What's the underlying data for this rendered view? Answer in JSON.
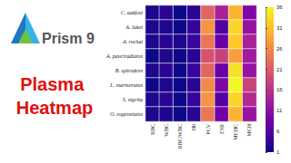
{
  "chart_data": {
    "type": "heatmap",
    "annotations": [
      "Prism 9",
      "Plasma Heatmap"
    ],
    "columns": [
      "RBC",
      "WBC",
      "RBC/WBC",
      "Hb",
      "PCV",
      "ESR",
      "MCHC",
      "MCH"
    ],
    "rows": [
      "C. aakfosi",
      "A. lakoi",
      "A. rochai",
      "A. pauciradiatus",
      "B. splendens",
      "L. marmoratus",
      "S. nigrita",
      "O. eugeneiatus"
    ],
    "cells": [
      [
        2,
        3,
        1,
        3,
        22,
        14,
        30,
        10
      ],
      [
        2,
        2,
        1,
        4,
        27,
        6,
        33,
        12
      ],
      [
        2,
        3,
        2,
        4,
        24,
        8,
        32,
        14
      ],
      [
        1,
        2,
        1,
        3,
        20,
        18,
        28,
        13
      ],
      [
        2,
        3,
        1,
        4,
        22,
        8,
        34,
        12
      ],
      [
        1,
        2,
        1,
        3,
        26,
        10,
        36,
        18
      ],
      [
        2,
        3,
        1,
        4,
        27,
        6,
        33,
        15
      ],
      [
        2,
        2,
        1,
        3,
        24,
        9,
        30,
        12
      ]
    ],
    "color": "plasma",
    "colorbar_range": [
      1,
      36
    ],
    "colorbar_ticks": [
      1,
      6,
      11,
      16,
      21,
      26,
      31,
      36
    ]
  }
}
